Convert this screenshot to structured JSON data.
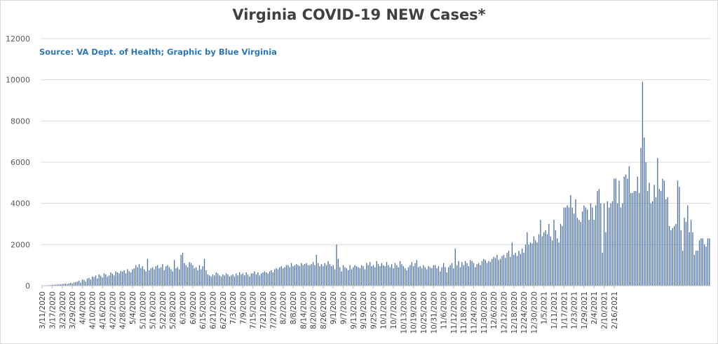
{
  "chart_data": {
    "type": "bar",
    "title": "Virginia COVID-19 NEW Cases*",
    "subtitle": "Source: VA Dept. of Health; Graphic by Blue Virginia",
    "xlabel": "",
    "ylabel": "",
    "ylim": [
      0,
      12000
    ],
    "yticks": [
      0,
      2000,
      4000,
      6000,
      8000,
      10000,
      12000
    ],
    "grid": true,
    "legend": "none",
    "x_tick_labels": [
      "3/11/2020",
      "3/17/2020",
      "3/23/2020",
      "3/29/2020",
      "4/4/2020",
      "4/10/2020",
      "4/16/2020",
      "4/22/2020",
      "4/28/2020",
      "5/4/2020",
      "5/10/2020",
      "5/16/2020",
      "5/22/2020",
      "5/28/2020",
      "6/3/2020",
      "6/9/2020",
      "6/15/2020",
      "6/21/2020",
      "6/27/2020",
      "7/3/2020",
      "7/9/2020",
      "7/15/2020",
      "7/21/2020",
      "7/27/2020",
      "8/2/2020",
      "8/8/2020",
      "8/14/2020",
      "8/20/2020",
      "8/26/2020",
      "9/1/2020",
      "9/7/2020",
      "9/13/2020",
      "9/19/2020",
      "9/25/2020",
      "10/1/2020",
      "10/7/2020",
      "10/13/2020",
      "10/19/2020",
      "10/25/2020",
      "10/31/2020",
      "11/6/2020",
      "11/12/2020",
      "11/18/2020",
      "11/24/2020",
      "11/30/2020",
      "12/6/2020",
      "12/12/2020",
      "12/18/2020",
      "12/24/2020",
      "12/30/2020",
      "1/5/2021",
      "1/11/2021",
      "1/17/2021",
      "1/23/2021",
      "1/29/2021",
      "2/4/2021",
      "2/10/2021",
      "2/16/2021"
    ],
    "colors": {
      "bar": "#4a6fa5",
      "title": "#404040",
      "source": "#2e75b6"
    },
    "weekly_values": [
      [
        5,
        10,
        15,
        20,
        30,
        40,
        45
      ],
      [
        50,
        55,
        60,
        65,
        70,
        80,
        90
      ],
      [
        100,
        80,
        120,
        140,
        110,
        160,
        180
      ],
      [
        200,
        250,
        150,
        300,
        280,
        200,
        350
      ],
      [
        380,
        300,
        450,
        420,
        500,
        350,
        550
      ],
      [
        480,
        400,
        600,
        550,
        450,
        500,
        650
      ],
      [
        580,
        500,
        700,
        650,
        600,
        720,
        680
      ],
      [
        750,
        600,
        800,
        700,
        650,
        800,
        850
      ],
      [
        1000,
        900,
        1050,
        850,
        950,
        800,
        700
      ],
      [
        1300,
        750,
        850,
        900,
        800,
        950,
        1000
      ],
      [
        850,
        900,
        1050,
        750,
        950,
        1000,
        900
      ],
      [
        800,
        700,
        1250,
        850,
        900,
        800,
        1500
      ],
      [
        1600,
        1100,
        1000,
        900,
        1150,
        1100,
        1000
      ],
      [
        850,
        900,
        750,
        1000,
        800,
        950,
        1300
      ],
      [
        750,
        550,
        500,
        450,
        550,
        500,
        650
      ],
      [
        600,
        500,
        450,
        550,
        500,
        600,
        550
      ],
      [
        450,
        500,
        550,
        450,
        600,
        500,
        650
      ],
      [
        550,
        600,
        500,
        650,
        550,
        450,
        600
      ],
      [
        600,
        700,
        550,
        650,
        500,
        600,
        650
      ],
      [
        700,
        650,
        600,
        700,
        750,
        650,
        800
      ],
      [
        850,
        800,
        900,
        950,
        850,
        900,
        1000
      ],
      [
        1000,
        900,
        1100,
        950,
        1000,
        1050,
        1000
      ],
      [
        950,
        1100,
        1000,
        1050,
        1100,
        1000,
        1000
      ],
      [
        1050,
        1150,
        1000,
        1500,
        1100,
        950,
        1050
      ],
      [
        950,
        1100,
        1000,
        1200,
        1050,
        950,
        1000
      ],
      [
        800,
        2000,
        1300,
        900,
        700,
        1000,
        900
      ],
      [
        850,
        750,
        1000,
        800,
        900,
        1000,
        950
      ],
      [
        900,
        850,
        1000,
        950,
        800,
        1100,
        1000
      ],
      [
        1150,
        950,
        1000,
        900,
        1200,
        1050,
        950
      ],
      [
        1100,
        1000,
        950,
        1150,
        1000,
        900,
        1050
      ],
      [
        850,
        1100,
        1000,
        900,
        1200,
        1050,
        950
      ],
      [
        850,
        750,
        900,
        1000,
        1150,
        950,
        1100
      ],
      [
        1250,
        900,
        950,
        850,
        1000,
        900,
        800
      ],
      [
        950,
        900,
        850,
        1000,
        1000,
        850,
        950
      ],
      [
        700,
        900,
        1100,
        900,
        650,
        900,
        1000
      ],
      [
        1100,
        850,
        1800,
        1000,
        1200,
        900,
        1150
      ],
      [
        1000,
        1200,
        1100,
        950,
        1250,
        1200,
        1100
      ],
      [
        900,
        1050,
        1100,
        1000,
        1200,
        1300,
        1250
      ],
      [
        1100,
        1200,
        1150,
        1300,
        1400,
        1350,
        1500
      ],
      [
        1250,
        1300,
        1450,
        1500,
        1350,
        1600,
        1700
      ],
      [
        1400,
        2100,
        1500,
        1600,
        1450,
        1700,
        1550
      ],
      [
        1800,
        1600,
        2000,
        2600,
        2000,
        2100,
        2050
      ],
      [
        2400,
        2200,
        2100,
        2500,
        3200,
        2400,
        2600
      ],
      [
        2700,
        2500,
        3000,
        2400,
        2200,
        3200,
        2700
      ],
      [
        2300,
        2100,
        3000,
        2900,
        3800,
        3800,
        3900
      ],
      [
        3800,
        4400,
        3800,
        3500,
        4200,
        3300,
        3200
      ],
      [
        3100,
        3600,
        3900,
        3800,
        3700,
        3200,
        4000
      ],
      [
        3800,
        3200,
        3900,
        4600,
        4700,
        4000,
        1600
      ],
      [
        4000,
        2600,
        4100,
        3800,
        4000,
        4100,
        5200
      ],
      [
        5200,
        4000,
        5100,
        3800,
        4000,
        5300,
        5400
      ],
      [
        5200,
        5800,
        4500,
        4500,
        4600,
        4600,
        5300
      ],
      [
        4500,
        6700,
        9900,
        7200,
        6000,
        4600,
        5000
      ],
      [
        4000,
        4100,
        4900,
        4300,
        6200,
        4700,
        4600
      ],
      [
        5200,
        5100,
        4200,
        4300,
        2900,
        2700,
        2800
      ],
      [
        2900,
        3000,
        5100,
        4800,
        2700,
        1700,
        3300
      ],
      [
        3100,
        3900,
        2600,
        3200,
        2600,
        1500,
        1700
      ],
      [
        1700,
        2200,
        2300,
        2300,
        2000,
        1900,
        2300
      ],
      [
        2300
      ]
    ]
  }
}
